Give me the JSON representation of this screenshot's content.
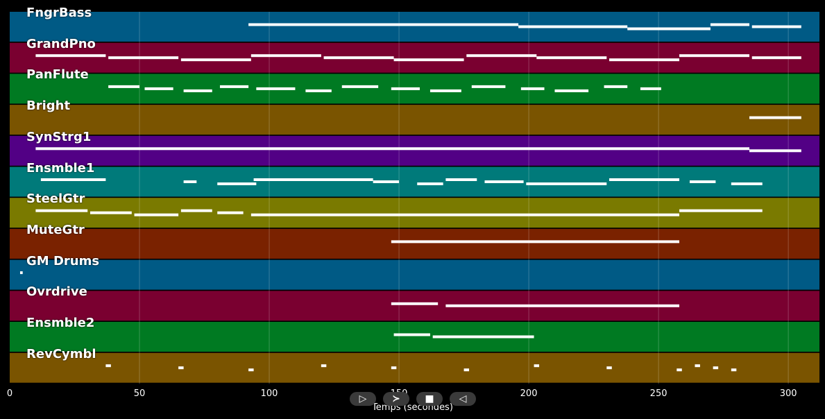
{
  "axis": {
    "ticks": [
      "0",
      "50",
      "100",
      "150",
      "200",
      "250",
      "300"
    ],
    "xlabel": "Temps (secondes)"
  },
  "controls": {
    "play_symbol": "▷",
    "forward_symbol": "≻",
    "stop_symbol": "■",
    "back_symbol": "◁"
  },
  "tracks": [
    {
      "name": "FngrBass",
      "color": "#005a85",
      "notes": [
        [
          92,
          196
        ],
        [
          196,
          238
        ],
        [
          238,
          270
        ],
        [
          270,
          285
        ],
        [
          286,
          305
        ]
      ]
    },
    {
      "name": "GrandPno",
      "color": "#7a0030",
      "notes": [
        [
          10,
          37
        ],
        [
          38,
          65
        ],
        [
          66,
          93
        ],
        [
          93,
          120
        ],
        [
          121,
          148
        ],
        [
          148,
          175
        ],
        [
          176,
          203
        ],
        [
          203,
          230
        ],
        [
          231,
          258
        ],
        [
          258,
          285
        ],
        [
          286,
          305
        ]
      ]
    },
    {
      "name": "PanFlute",
      "color": "#007a22",
      "notes": [
        [
          38,
          50
        ],
        [
          52,
          63
        ],
        [
          67,
          78
        ],
        [
          81,
          92
        ],
        [
          95,
          110
        ],
        [
          114,
          124
        ],
        [
          128,
          142
        ],
        [
          147,
          158
        ],
        [
          162,
          174
        ],
        [
          178,
          191
        ],
        [
          197,
          206
        ],
        [
          210,
          223
        ],
        [
          229,
          238
        ],
        [
          243,
          251
        ]
      ]
    },
    {
      "name": "Bright",
      "color": "#7a5400",
      "notes": [
        [
          285,
          305
        ]
      ]
    },
    {
      "name": "SynStrg1",
      "color": "#520085",
      "notes": [
        [
          10,
          285
        ],
        [
          285,
          305
        ]
      ]
    },
    {
      "name": "Ensmble1",
      "color": "#007a7a",
      "notes": [
        [
          12,
          37
        ],
        [
          67,
          72
        ],
        [
          80,
          95
        ],
        [
          94,
          140
        ],
        [
          140,
          150
        ],
        [
          157,
          167
        ],
        [
          168,
          180
        ],
        [
          183,
          198
        ],
        [
          199,
          230
        ],
        [
          231,
          258
        ],
        [
          262,
          272
        ],
        [
          278,
          290
        ]
      ]
    },
    {
      "name": "SteelGtr",
      "color": "#7a7a00",
      "notes": [
        [
          10,
          30
        ],
        [
          31,
          47
        ],
        [
          48,
          65
        ],
        [
          66,
          78
        ],
        [
          80,
          90
        ],
        [
          93,
          258
        ],
        [
          258,
          290
        ]
      ]
    },
    {
      "name": "MuteGtr",
      "color": "#7a2200",
      "notes": [
        [
          147,
          258
        ]
      ]
    },
    {
      "name": "GM Drums",
      "color": "#005a85",
      "notes": [
        [
          4,
          5
        ]
      ]
    },
    {
      "name": "Ovrdrive",
      "color": "#7a0030",
      "notes": [
        [
          147,
          165
        ],
        [
          168,
          258
        ]
      ]
    },
    {
      "name": "Ensmble2",
      "color": "#007a22",
      "notes": [
        [
          148,
          162
        ],
        [
          163,
          202
        ]
      ]
    },
    {
      "name": "RevCymbl",
      "color": "#7a5400",
      "notes": [
        [
          37,
          39
        ],
        [
          65,
          67
        ],
        [
          92,
          94
        ],
        [
          120,
          122
        ],
        [
          147,
          149
        ],
        [
          175,
          177
        ],
        [
          202,
          204
        ],
        [
          230,
          232
        ],
        [
          257,
          259
        ],
        [
          264,
          266
        ],
        [
          271,
          273
        ],
        [
          278,
          280
        ]
      ]
    }
  ]
}
